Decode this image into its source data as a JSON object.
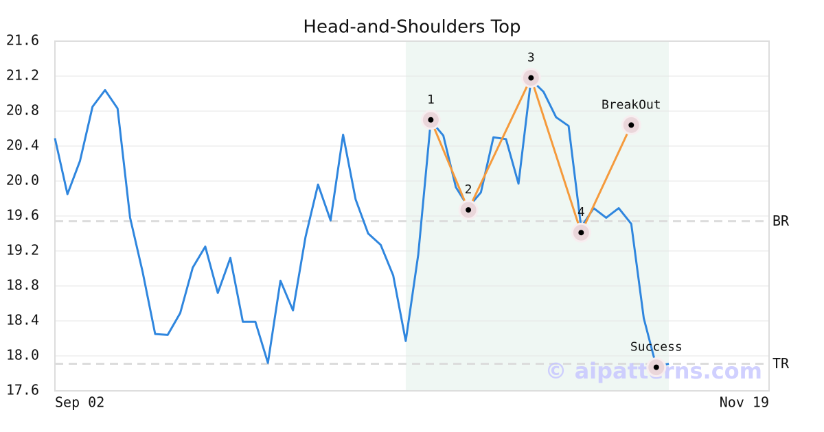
{
  "chart_data": {
    "type": "line",
    "title": "Head-and-Shoulders Top",
    "categories": [
      "Sep 02",
      null,
      null,
      null,
      null,
      null,
      null,
      null,
      null,
      null,
      null,
      null,
      null,
      null,
      null,
      null,
      null,
      null,
      null,
      null,
      null,
      null,
      null,
      null,
      null,
      null,
      null,
      null,
      null,
      null,
      null,
      null,
      null,
      null,
      null,
      null,
      null,
      null,
      null,
      null,
      null,
      null,
      null,
      null,
      null,
      null,
      null,
      null,
      null,
      null,
      null,
      null,
      null,
      null,
      null,
      null,
      null,
      "Nov 19"
    ],
    "values": [
      20.49,
      19.85,
      20.23,
      20.85,
      21.04,
      20.83,
      19.58,
      18.96,
      18.25,
      18.24,
      18.49,
      19.01,
      19.25,
      18.72,
      19.12,
      18.39,
      18.39,
      17.92,
      18.86,
      18.52,
      19.36,
      19.96,
      19.55,
      20.53,
      19.79,
      19.4,
      19.27,
      18.92,
      18.17,
      19.16,
      20.69,
      20.52,
      19.93,
      19.7,
      19.87,
      20.5,
      20.48,
      19.97,
      21.16,
      21.02,
      20.73,
      20.63,
      19.47,
      19.69,
      19.58,
      19.69,
      19.51,
      18.43,
      17.88,
      17.91,
      null,
      null,
      null,
      null,
      null,
      null,
      null,
      null
    ],
    "color": "#2f86de",
    "ylim": [
      17.6,
      21.6
    ],
    "yticks": [
      17.6,
      {
        "value": 18,
        "label": "18.0"
      },
      18.4,
      18.8,
      19.2,
      19.6,
      {
        "value": 20,
        "label": "20.0"
      },
      20.4,
      20.8,
      21.2,
      21.6
    ],
    "grid": true,
    "highlight": {
      "from": 28,
      "to": 49,
      "color": "#eff7f3"
    },
    "pattern": {
      "color": "#f59a3c",
      "points": [
        {
          "label": "1",
          "index": 30,
          "value": 20.7
        },
        {
          "label": "2",
          "index": 33,
          "value": 19.67
        },
        {
          "label": "3",
          "index": 38,
          "value": 21.18
        },
        {
          "label": "4",
          "index": 42,
          "value": 19.41
        },
        {
          "label": "BreakOut",
          "index": 46,
          "value": 20.64
        }
      ]
    },
    "success": {
      "label": "Success",
      "index": 48,
      "value": 17.87
    },
    "levels": [
      {
        "label": "BR",
        "value": 19.54
      },
      {
        "label": "TR",
        "value": 17.91
      }
    ],
    "watermark": "© aipatterns.com"
  }
}
